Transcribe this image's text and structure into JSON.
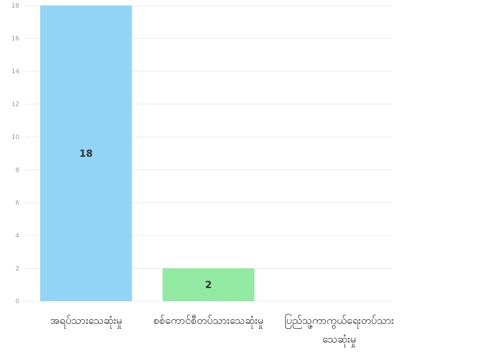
{
  "chart_data": {
    "type": "bar",
    "categories": [
      "အရပ်သားသေဆုံးမှု",
      "စစ်ကောင်စီတပ်သားသေဆုံးမှု",
      "ပြည်သူ့ကာကွယ်ရေးတပ်သား သေဆုံးမှု"
    ],
    "values": [
      18,
      2,
      0
    ],
    "data_labels": [
      "18",
      "2",
      ""
    ],
    "colors": [
      "#93d5f7",
      "#92e9a1",
      "#f7c08a"
    ],
    "ylim": [
      0,
      18
    ],
    "yticks": [
      "0",
      "2",
      "4",
      "6",
      "8",
      "10",
      "12",
      "14",
      "16",
      "18"
    ],
    "grid": true,
    "title": "",
    "xlabel": "",
    "ylabel": ""
  }
}
